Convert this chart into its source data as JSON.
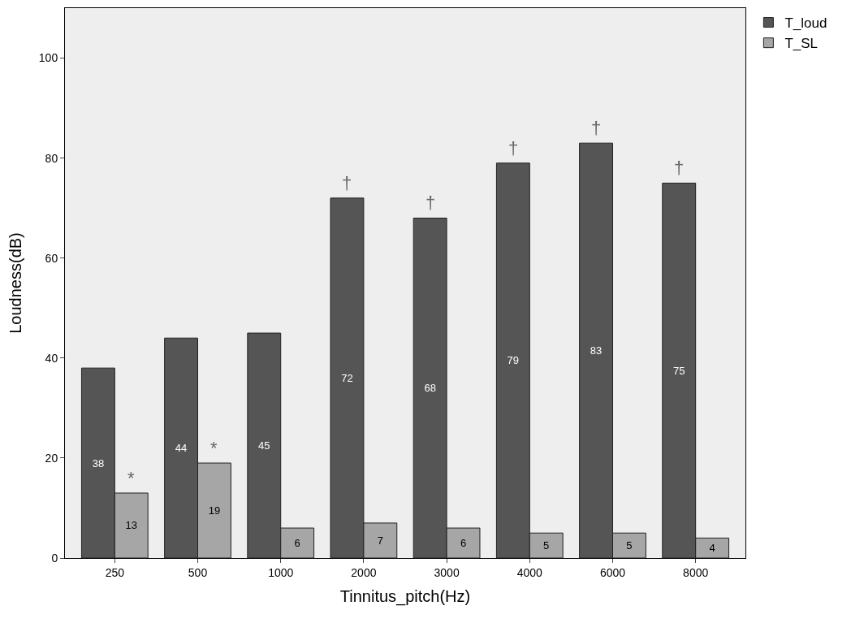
{
  "chart_data": {
    "type": "bar",
    "xlabel": "Tinnitus_pitch(Hz)",
    "ylabel": "Loudness(dB)",
    "categories": [
      "250",
      "500",
      "1000",
      "2000",
      "3000",
      "4000",
      "6000",
      "8000"
    ],
    "series": [
      {
        "name": "T_loud",
        "color": "#555555",
        "values": [
          38,
          44,
          45,
          72,
          68,
          79,
          83,
          75
        ]
      },
      {
        "name": "T_SL",
        "color": "#a6a6a6",
        "values": [
          13,
          19,
          6,
          7,
          6,
          5,
          5,
          4
        ]
      }
    ],
    "ylim": [
      0,
      110
    ],
    "yticks": [
      0,
      20,
      40,
      60,
      80,
      100
    ],
    "grid": false,
    "legend": "top right",
    "data_labels": true,
    "annotations": [
      {
        "text": "*",
        "x": "250",
        "y": 13
      },
      {
        "text": "*",
        "x": "500",
        "y": 19
      },
      {
        "text": "†",
        "x": "2000",
        "y": 72
      },
      {
        "text": "†",
        "x": "3000",
        "y": 68
      },
      {
        "text": "†",
        "x": "4000",
        "y": 79
      },
      {
        "text": "†",
        "x": "6000",
        "y": 83
      },
      {
        "text": "†",
        "x": "8000",
        "y": 75
      }
    ]
  }
}
